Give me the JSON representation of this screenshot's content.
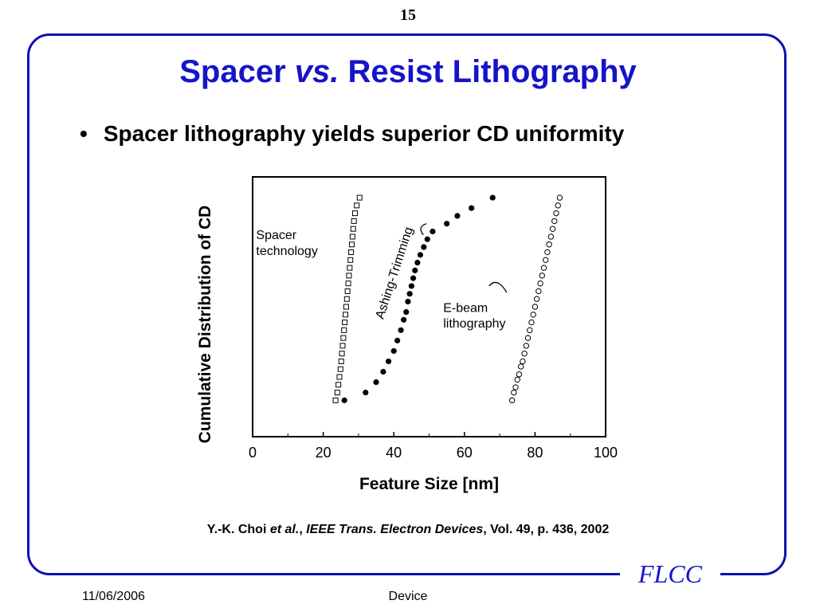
{
  "page_number": "15",
  "title": {
    "part1": "Spacer ",
    "part2": "vs.",
    "part3": " Resist Lithography"
  },
  "bullet": {
    "marker": "•",
    "text": "Spacer lithography yields superior CD uniformity"
  },
  "citation": {
    "authors": "Y.-K. Choi ",
    "etal": "et al.",
    "sep1": ", ",
    "journal": "IEEE Trans. Electron Devices",
    "rest": ", Vol. 49, p. 436, 2002"
  },
  "footer": {
    "date": "11/06/2006",
    "center": "Device",
    "logo": "FLCC"
  },
  "colors": {
    "accent": "#1414c8",
    "frame": "#1010b0"
  },
  "chart_data": {
    "type": "scatter",
    "xlabel": "Feature Size [nm]",
    "ylabel": "Cumulative Distribution of CD",
    "xlim": [
      0,
      100
    ],
    "xticks": [
      0,
      20,
      40,
      60,
      80,
      100
    ],
    "ylim": [
      0,
      1
    ],
    "grid": false,
    "annotations": [
      {
        "text": "Spacer",
        "x": 1,
        "y": 0.76
      },
      {
        "text": "technology",
        "x": 1,
        "y": 0.7
      },
      {
        "text": "Ashing-Trimming",
        "x": 37,
        "y": 0.45,
        "rotate": -72
      },
      {
        "text": "E-beam",
        "x": 54,
        "y": 0.48
      },
      {
        "text": "lithography",
        "x": 54,
        "y": 0.42
      }
    ],
    "series": [
      {
        "marker": "open-square",
        "points": [
          [
            23.5,
            0.14
          ],
          [
            24,
            0.17
          ],
          [
            24.3,
            0.2
          ],
          [
            24.6,
            0.23
          ],
          [
            24.9,
            0.26
          ],
          [
            25.1,
            0.29
          ],
          [
            25.3,
            0.32
          ],
          [
            25.5,
            0.35
          ],
          [
            25.7,
            0.38
          ],
          [
            25.9,
            0.41
          ],
          [
            26.1,
            0.44
          ],
          [
            26.3,
            0.47
          ],
          [
            26.5,
            0.5
          ],
          [
            26.7,
            0.53
          ],
          [
            26.9,
            0.56
          ],
          [
            27.1,
            0.59
          ],
          [
            27.3,
            0.62
          ],
          [
            27.5,
            0.65
          ],
          [
            27.7,
            0.68
          ],
          [
            27.9,
            0.71
          ],
          [
            28.1,
            0.74
          ],
          [
            28.3,
            0.77
          ],
          [
            28.5,
            0.8
          ],
          [
            28.7,
            0.83
          ],
          [
            29.0,
            0.86
          ],
          [
            29.5,
            0.89
          ],
          [
            30.3,
            0.92
          ]
        ]
      },
      {
        "marker": "filled-circle",
        "points": [
          [
            26,
            0.14
          ],
          [
            32,
            0.17
          ],
          [
            35,
            0.21
          ],
          [
            37,
            0.25
          ],
          [
            38.5,
            0.29
          ],
          [
            40,
            0.33
          ],
          [
            41,
            0.37
          ],
          [
            42,
            0.41
          ],
          [
            42.8,
            0.45
          ],
          [
            43.5,
            0.48
          ],
          [
            44,
            0.52
          ],
          [
            44.5,
            0.55
          ],
          [
            45,
            0.58
          ],
          [
            45.5,
            0.61
          ],
          [
            46,
            0.64
          ],
          [
            46.7,
            0.67
          ],
          [
            47.5,
            0.7
          ],
          [
            48.5,
            0.73
          ],
          [
            49.5,
            0.76
          ],
          [
            51,
            0.79
          ],
          [
            55,
            0.82
          ],
          [
            58,
            0.85
          ],
          [
            62,
            0.88
          ],
          [
            68,
            0.92
          ]
        ]
      },
      {
        "marker": "open-circle",
        "points": [
          [
            73.5,
            0.14
          ],
          [
            74,
            0.17
          ],
          [
            74.5,
            0.19
          ],
          [
            75,
            0.22
          ],
          [
            75.5,
            0.24
          ],
          [
            76,
            0.27
          ],
          [
            76.5,
            0.29
          ],
          [
            77,
            0.32
          ],
          [
            77.5,
            0.35
          ],
          [
            78,
            0.38
          ],
          [
            78.5,
            0.41
          ],
          [
            79,
            0.44
          ],
          [
            79.5,
            0.47
          ],
          [
            80,
            0.5
          ],
          [
            80.5,
            0.53
          ],
          [
            81,
            0.56
          ],
          [
            81.5,
            0.59
          ],
          [
            82,
            0.62
          ],
          [
            82.5,
            0.65
          ],
          [
            83,
            0.68
          ],
          [
            83.5,
            0.71
          ],
          [
            84,
            0.74
          ],
          [
            84.5,
            0.77
          ],
          [
            85,
            0.8
          ],
          [
            85.5,
            0.83
          ],
          [
            86,
            0.86
          ],
          [
            86.5,
            0.89
          ],
          [
            87,
            0.92
          ]
        ]
      }
    ]
  }
}
